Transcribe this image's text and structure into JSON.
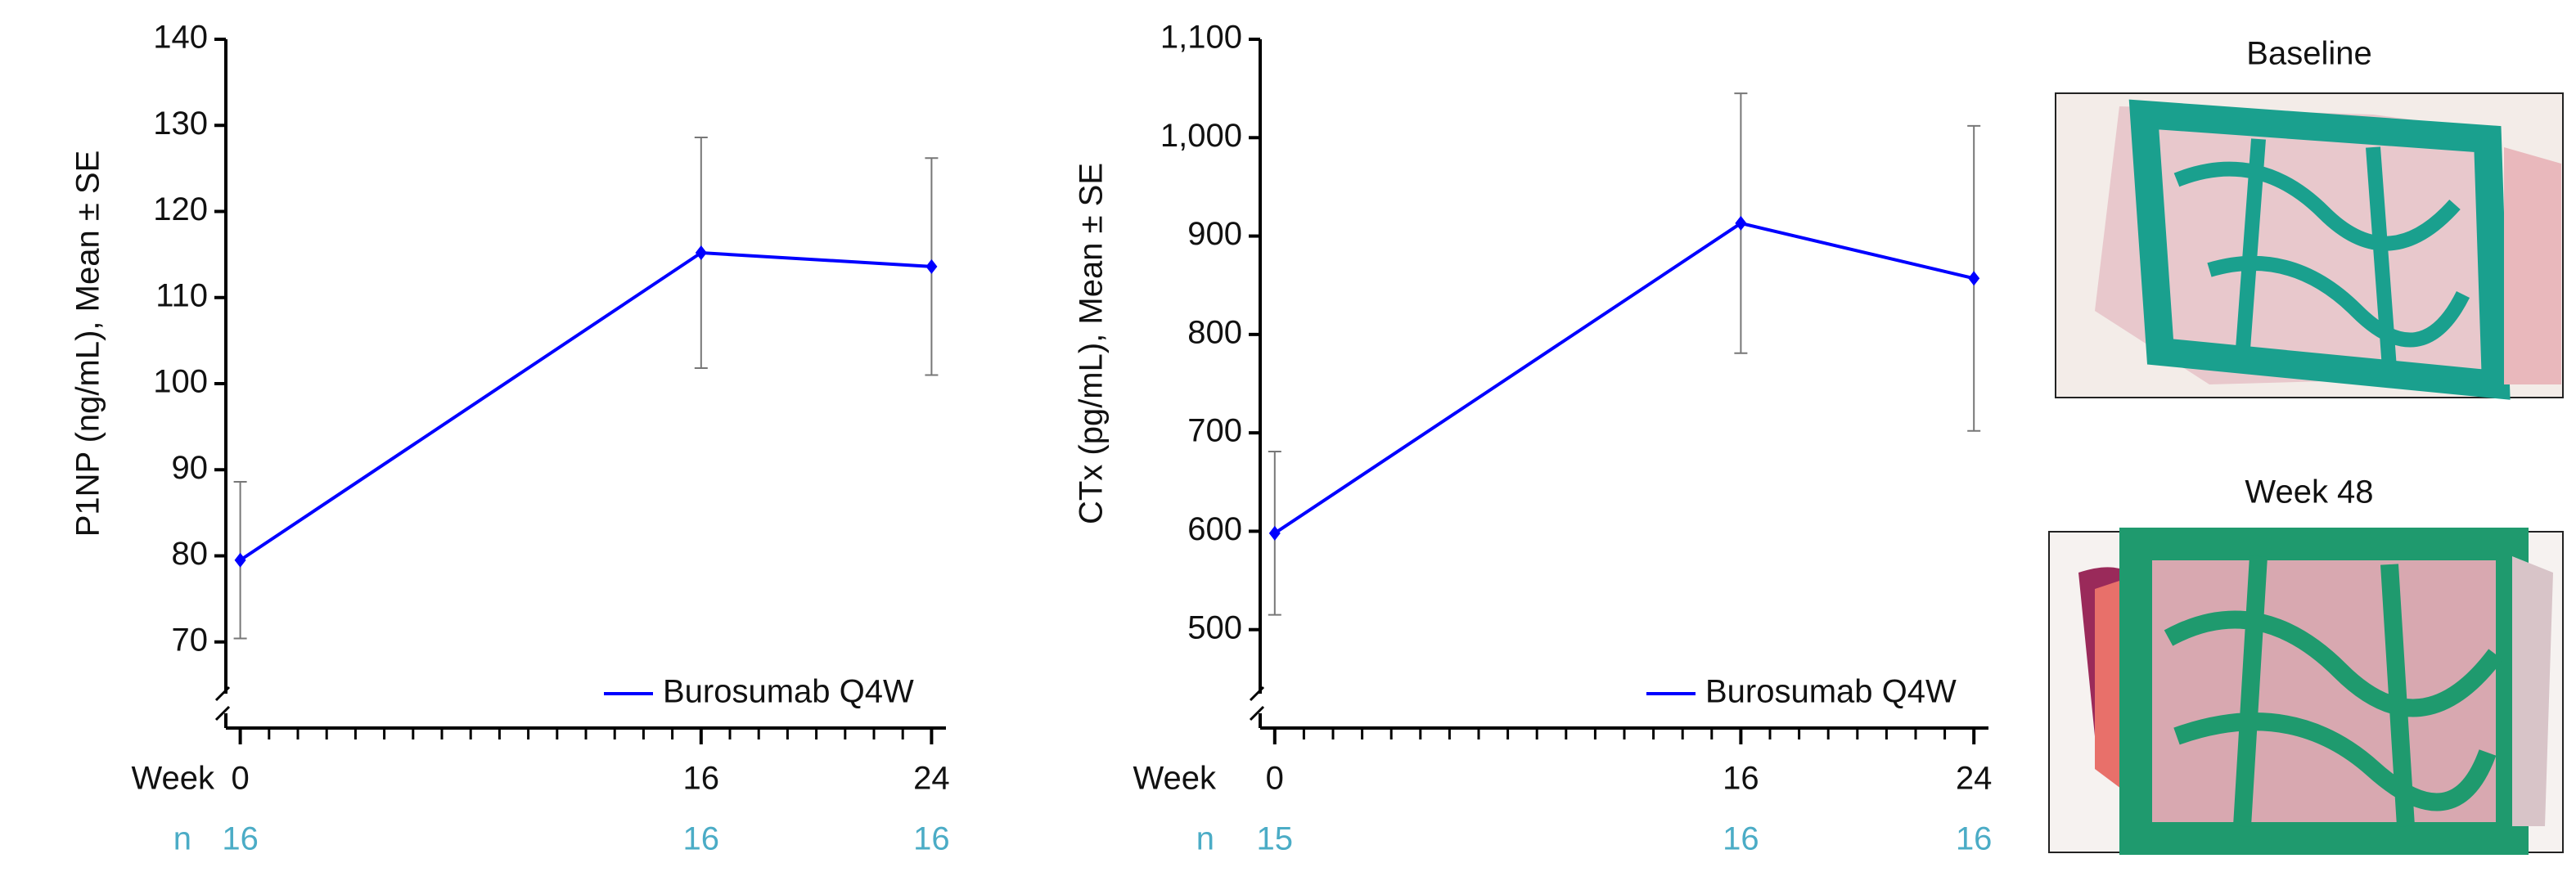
{
  "chart_data": [
    {
      "type": "line",
      "ylabel": "P1NP (ng/mL), Mean ± SE",
      "x_row_label": "Week",
      "n_label": "n",
      "n": [
        16,
        16,
        16
      ],
      "n_color": "#4bacc6",
      "x": [
        0,
        16,
        24
      ],
      "xlim": [
        -0.5,
        24.5
      ],
      "xticks": [
        0,
        16,
        24
      ],
      "xminor_step": 1,
      "ylim": [
        60,
        140
      ],
      "yticks": [
        70,
        80,
        90,
        100,
        110,
        120,
        130,
        140
      ],
      "axis_break": true,
      "legend": "lower right",
      "series": [
        {
          "name": "Burosumab Q4W",
          "color": "#0000ff",
          "values": [
            79.5,
            115.2,
            113.6
          ],
          "errors": [
            9.1,
            13.4,
            12.6
          ]
        }
      ]
    },
    {
      "type": "line",
      "ylabel": "CTx (pg/mL), Mean ± SE",
      "x_row_label": "Week",
      "n_label": "n",
      "n": [
        15,
        16,
        16
      ],
      "n_color": "#4bacc6",
      "x": [
        0,
        16,
        24
      ],
      "xlim": [
        -0.5,
        24.5
      ],
      "xticks": [
        0,
        16,
        24
      ],
      "xminor_step": 1,
      "ylim": [
        400,
        1100
      ],
      "yticks": [
        500,
        600,
        700,
        800,
        900,
        {
          "value": 1000,
          "label": "1,000"
        },
        {
          "value": 1100,
          "label": "1,100"
        }
      ],
      "axis_break": true,
      "legend": "lower right",
      "series": [
        {
          "name": "Burosumab Q4W",
          "color": "#0000ff",
          "values": [
            598,
            913,
            857
          ],
          "errors": [
            83,
            132,
            155
          ]
        }
      ]
    }
  ],
  "images": [
    {
      "title": "Baseline"
    },
    {
      "title": "Week 48"
    }
  ]
}
